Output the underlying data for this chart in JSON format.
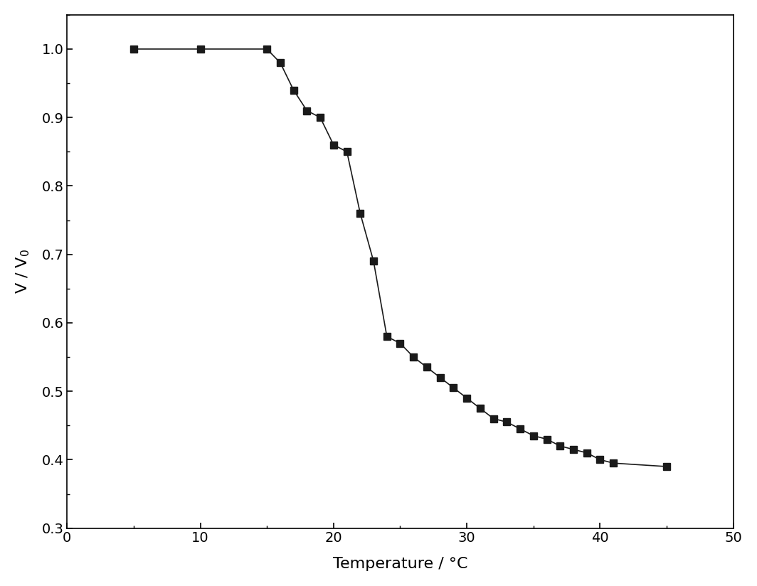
{
  "x": [
    5,
    10,
    15,
    16,
    17,
    18,
    19,
    20,
    21,
    22,
    23,
    24,
    25,
    26,
    27,
    28,
    29,
    30,
    31,
    32,
    33,
    34,
    35,
    36,
    37,
    38,
    39,
    40,
    41,
    45
  ],
  "y": [
    1.0,
    1.0,
    1.0,
    0.98,
    0.94,
    0.91,
    0.9,
    0.86,
    0.85,
    0.76,
    0.69,
    0.58,
    0.57,
    0.55,
    0.535,
    0.52,
    0.505,
    0.49,
    0.475,
    0.46,
    0.455,
    0.445,
    0.435,
    0.43,
    0.42,
    0.415,
    0.41,
    0.4,
    0.395,
    0.39
  ],
  "xlabel": "Temperature / °C",
  "ylabel": "V / V$_0$",
  "xlim": [
    0,
    50
  ],
  "ylim": [
    0.3,
    1.05
  ],
  "xticks": [
    0,
    10,
    20,
    30,
    40,
    50
  ],
  "yticks": [
    0.3,
    0.4,
    0.5,
    0.6,
    0.7,
    0.8,
    0.9,
    1.0
  ],
  "marker": "s",
  "marker_color": "#1a1a1a",
  "line_color": "#1a1a1a",
  "marker_size": 7,
  "line_width": 1.2,
  "background_color": "#ffffff",
  "xlabel_fontsize": 16,
  "ylabel_fontsize": 16,
  "tick_fontsize": 14
}
